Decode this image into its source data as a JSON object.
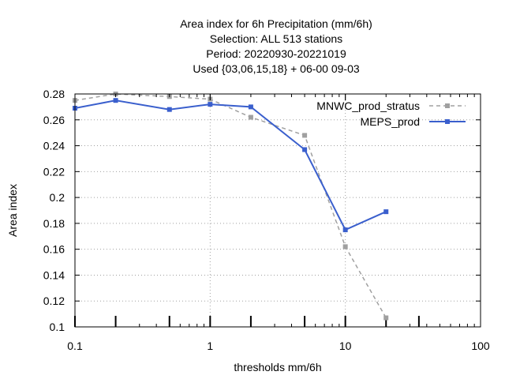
{
  "chart_data": {
    "type": "line",
    "title_lines": [
      "Area index  for 6h Precipitation (mm/6h)",
      "Selection: ALL    513 stations",
      "Period: 20220930-20221019",
      "Used {03,06,15,18} + 06-00 09-03"
    ],
    "xlabel": "thresholds mm/6h",
    "ylabel": "Area index",
    "x_scale": "log",
    "xlim": [
      0.1,
      100
    ],
    "ylim": [
      0.1,
      0.28
    ],
    "x_ticks": [
      0.1,
      1,
      10,
      100
    ],
    "x_tick_labels": [
      "0.1",
      "1",
      "10",
      "100"
    ],
    "y_ticks": [
      0.1,
      0.12,
      0.14,
      0.16,
      0.18,
      0.2,
      0.22,
      0.24,
      0.26,
      0.28
    ],
    "y_tick_labels": [
      "0.1",
      "0.12",
      "0.14",
      "0.16",
      "0.18",
      "0.2",
      "0.22",
      "0.24",
      "0.26",
      "0.28"
    ],
    "grid": true,
    "legend_position": "top-right",
    "thresholds": [
      0.1,
      0.2,
      0.5,
      1,
      2,
      5,
      10,
      20,
      35
    ],
    "series": [
      {
        "name": "MNWC_prod_stratus",
        "color": "#a0a0a0",
        "style": "dashed",
        "x": [
          0.1,
          0.2,
          0.5,
          1,
          2,
          5,
          10,
          20
        ],
        "y": [
          0.275,
          0.28,
          0.278,
          0.276,
          0.262,
          0.248,
          0.162,
          0.107
        ]
      },
      {
        "name": "MEPS_prod",
        "color": "#3a5fcd",
        "style": "solid",
        "x": [
          0.1,
          0.2,
          0.5,
          1,
          2,
          5,
          10,
          20
        ],
        "y": [
          0.269,
          0.275,
          0.268,
          0.272,
          0.27,
          0.237,
          0.175,
          0.189
        ]
      }
    ]
  }
}
